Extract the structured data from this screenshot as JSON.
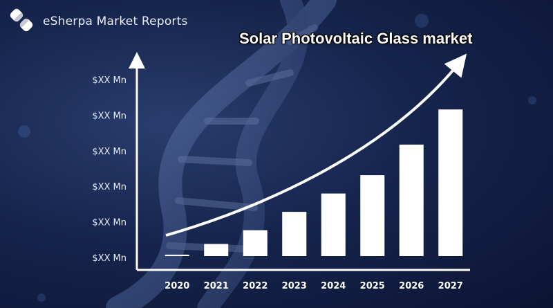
{
  "header": {
    "brand_name": "eSherpa Market Reports",
    "logo_icon": "esherpa-logo-icon"
  },
  "colors": {
    "background": "#16254d",
    "bars": "#ffffff",
    "axes": "#ffffff",
    "title": "#ffffff"
  },
  "chart_data": {
    "type": "bar",
    "title": "Solar Photovoltaic Glass market",
    "xlabel": "",
    "ylabel": "",
    "categories": [
      "2020",
      "2021",
      "2022",
      "2023",
      "2024",
      "2025",
      "2026",
      "2027"
    ],
    "values": [
      1,
      1.7,
      2.6,
      3.8,
      5.0,
      6.2,
      8.2,
      10.5
    ],
    "ylim": [
      0,
      12
    ],
    "y_tick_labels": [
      "$XX Mn",
      "$XX Mn",
      "$XX Mn",
      "$XX Mn",
      "$XX Mn",
      "$XX Mn"
    ],
    "grid": false,
    "legend": "none",
    "trend_arrow": true
  }
}
